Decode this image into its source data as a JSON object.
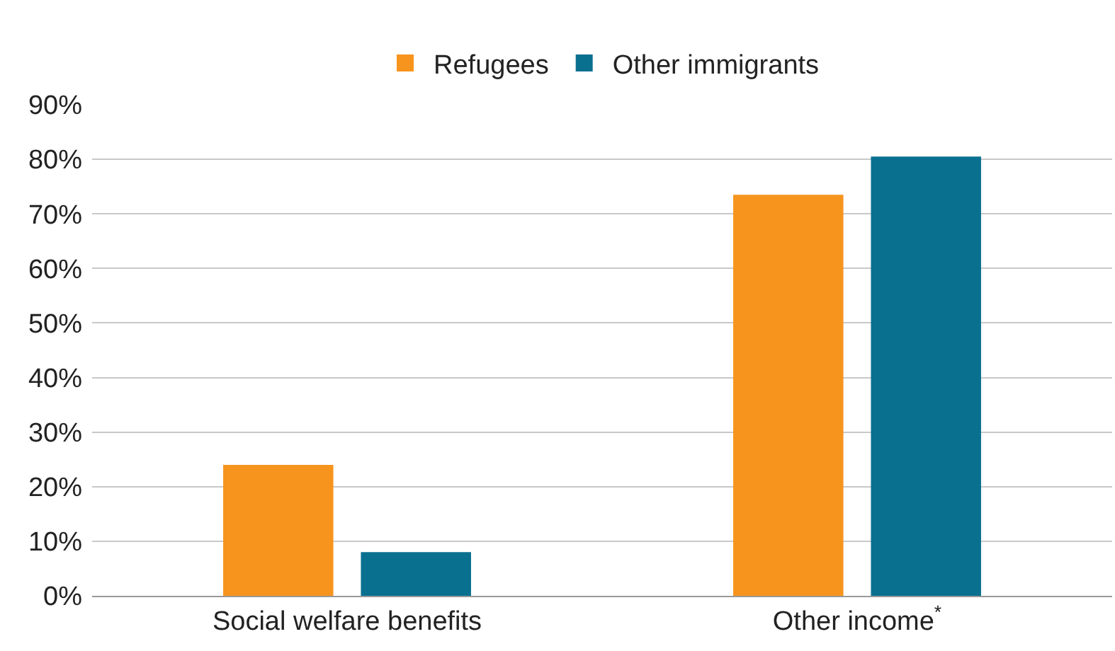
{
  "chart_data": {
    "type": "bar",
    "categories": [
      "Social welfare benefits",
      "Other income$^{*}$"
    ],
    "series": [
      {
        "name": "Refugees",
        "color": "#f7941d",
        "values": [
          24,
          73.5
        ]
      },
      {
        "name": "Other immigrants",
        "color": "#0a7090",
        "values": [
          8,
          80.5
        ]
      }
    ],
    "ylim": [
      0,
      90
    ],
    "yticks": [
      {
        "value": 0,
        "label": "0%"
      },
      {
        "value": 10,
        "label": "10%"
      },
      {
        "value": 20,
        "label": "20%"
      },
      {
        "value": 30,
        "label": "30%"
      },
      {
        "value": 40,
        "label": "40%"
      },
      {
        "value": 50,
        "label": "50%"
      },
      {
        "value": 60,
        "label": "60%"
      },
      {
        "value": 70,
        "label": "70%"
      },
      {
        "value": 80,
        "label": "80%"
      },
      {
        "value": 90,
        "label": "90%"
      }
    ],
    "grid": "y",
    "legend": "top"
  }
}
